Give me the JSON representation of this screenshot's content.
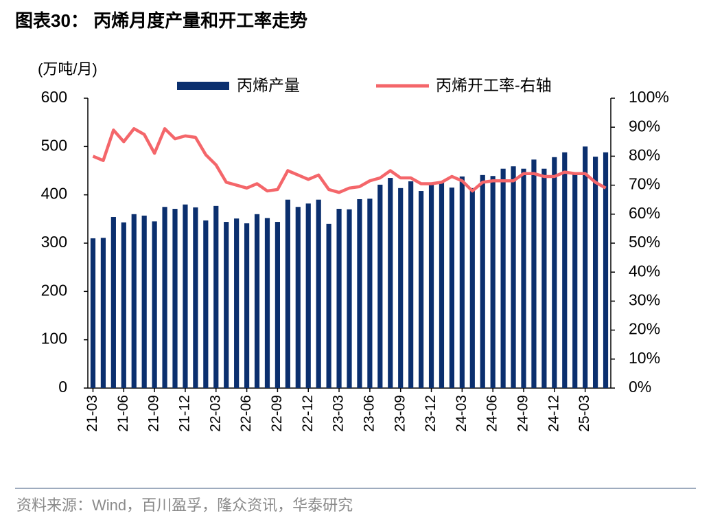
{
  "chart_data": {
    "type": "bar",
    "title": "图表30：  丙烯月度产量和开工率走势",
    "ylabel": "(万吨/月)",
    "source": "资料来源：Wind，百川盈孚，隆众资讯，华泰研究",
    "categories": [
      "21-03",
      null,
      null,
      "21-06",
      null,
      null,
      "21-09",
      null,
      null,
      "21-12",
      null,
      null,
      "22-03",
      null,
      null,
      "22-06",
      null,
      null,
      "22-09",
      null,
      null,
      "22-12",
      null,
      null,
      "23-03",
      null,
      null,
      "23-06",
      null,
      null,
      "23-09",
      null,
      null,
      "23-12",
      null,
      null,
      "24-03",
      null,
      null,
      "24-06",
      null,
      null,
      "24-09",
      null,
      null,
      "24-12",
      null,
      null,
      "25-03",
      null,
      null
    ],
    "series": [
      {
        "name": "丙烯产量",
        "type": "bar",
        "color": "#0b2f6e",
        "values": [
          310,
          311,
          354,
          343,
          360,
          357,
          345,
          375,
          371,
          380,
          374,
          347,
          377,
          344,
          351,
          341,
          360,
          352,
          344,
          390,
          375,
          382,
          390,
          340,
          371,
          370,
          391,
          392,
          421,
          435,
          414,
          428,
          408,
          422,
          425,
          415,
          438,
          414,
          441,
          439,
          454,
          459,
          454,
          473,
          454,
          478,
          488,
          445,
          500,
          479,
          488
        ]
      },
      {
        "name": "丙烯开工率-右轴",
        "type": "line",
        "axis": "y2",
        "color": "#f4666a",
        "values": [
          80,
          78.5,
          89,
          85,
          89.5,
          87.5,
          81,
          89.5,
          86,
          87,
          86.5,
          80.5,
          77,
          71,
          70,
          69,
          70.5,
          68,
          68.5,
          75,
          73.5,
          72,
          73.5,
          68.5,
          67.5,
          69,
          69.5,
          71.5,
          72.5,
          75,
          72.5,
          72.5,
          70.5,
          70.5,
          71,
          73,
          71.5,
          68,
          71,
          71.5,
          71.5,
          71.5,
          74,
          74,
          73,
          73,
          74.5,
          74,
          74,
          71,
          69
        ]
      }
    ],
    "ylim": [
      0,
      600
    ],
    "yticks": [
      0,
      100,
      200,
      300,
      400,
      500,
      600
    ],
    "y2lim": [
      0,
      100
    ],
    "y2ticks": [
      {
        "value": 0,
        "label": "0%"
      },
      {
        "value": 10,
        "label": "10%"
      },
      {
        "value": 20,
        "label": "20%"
      },
      {
        "value": 30,
        "label": "30%"
      },
      {
        "value": 40,
        "label": "40%"
      },
      {
        "value": 50,
        "label": "50%"
      },
      {
        "value": 60,
        "label": "60%"
      },
      {
        "value": 70,
        "label": "70%"
      },
      {
        "value": 80,
        "label": "80%"
      },
      {
        "value": 90,
        "label": "90%"
      },
      {
        "value": 100,
        "label": "100%"
      }
    ],
    "grid": false,
    "legend": "top"
  }
}
